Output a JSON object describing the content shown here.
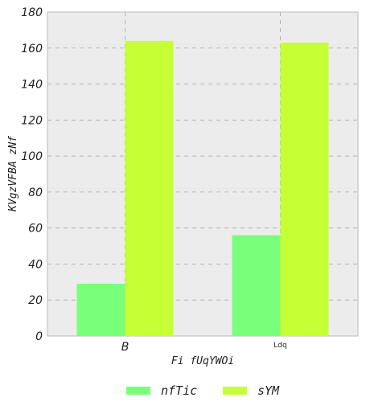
{
  "chart_data": {
    "type": "bar",
    "title": "",
    "xlabel": "Fi fUqYWOi",
    "ylabel": "KVgzVFBA zNf",
    "categories": [
      "B",
      "Ldq"
    ],
    "series": [
      {
        "name": "nfTic",
        "values": [
          29,
          56
        ],
        "color": "#7aff7a"
      },
      {
        "name": "sYM",
        "values": [
          164,
          163
        ],
        "color": "#c6ff33"
      }
    ],
    "ylim": [
      0,
      180
    ],
    "yticks": [
      0,
      20,
      40,
      60,
      80,
      100,
      120,
      140,
      160,
      180
    ],
    "grid": true,
    "legend": "bottom-center",
    "background": "#ececec"
  }
}
